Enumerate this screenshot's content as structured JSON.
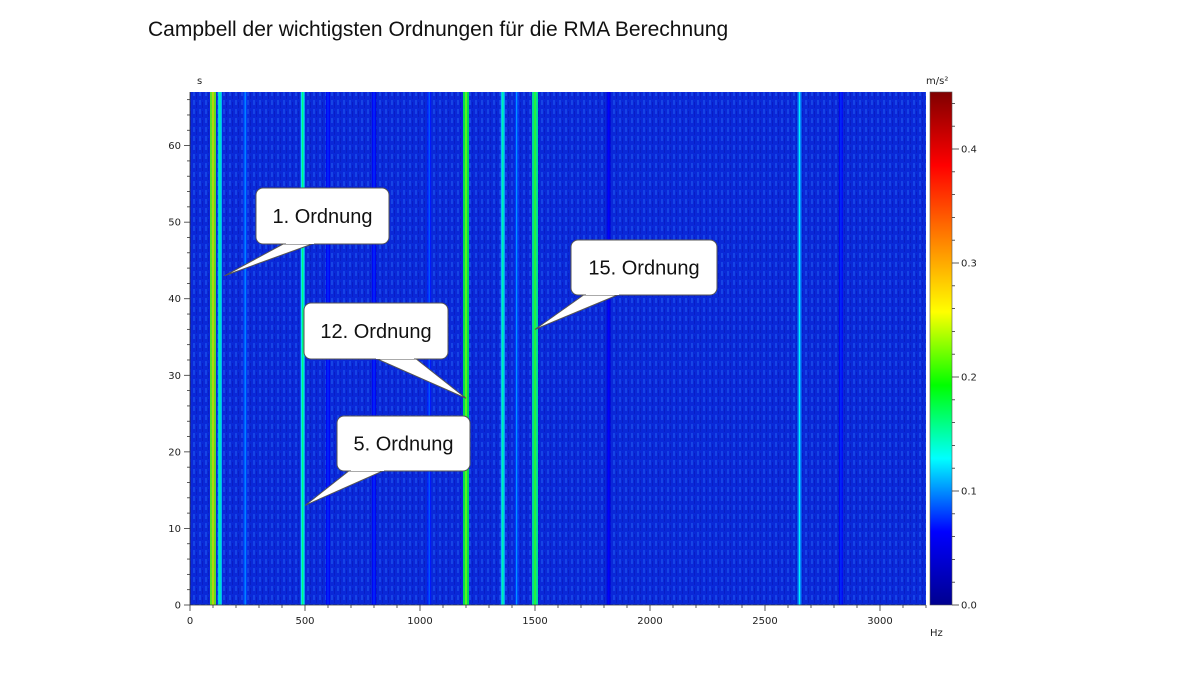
{
  "title": "Campbell der wichtigsten Ordnungen für die RMA Berechnung",
  "chart_data": {
    "type": "heatmap",
    "title": "Campbell der wichtigsten Ordnungen für die RMA Berechnung",
    "xlabel": "Hz",
    "ylabel": "s",
    "colorbar_label": "m/s²",
    "xlim": [
      0,
      3200
    ],
    "ylim": [
      0,
      67
    ],
    "clim": [
      0,
      0.45
    ],
    "x_ticks": [
      0,
      500,
      1000,
      1500,
      2000,
      2500,
      3000
    ],
    "y_ticks": [
      0,
      10,
      20,
      30,
      40,
      50,
      60
    ],
    "colorbar_ticks": [
      "0.0",
      "0.1",
      "0.2",
      "0.3",
      "0.4"
    ],
    "colormap": [
      "#00008f",
      "#0000ff",
      "#00ffff",
      "#00ff00",
      "#ffff00",
      "#ff8000",
      "#ff0000",
      "#800000"
    ],
    "bands": [
      {
        "hz": 100,
        "level": 0.22
      },
      {
        "hz": 130,
        "level": 0.12
      },
      {
        "hz": 240,
        "level": 0.08
      },
      {
        "hz": 490,
        "level": 0.13
      },
      {
        "hz": 600,
        "level": 0.06
      },
      {
        "hz": 800,
        "level": 0.06
      },
      {
        "hz": 1040,
        "level": 0.07
      },
      {
        "hz": 1200,
        "level": 0.18
      },
      {
        "hz": 1360,
        "level": 0.12
      },
      {
        "hz": 1420,
        "level": 0.08
      },
      {
        "hz": 1500,
        "level": 0.16
      },
      {
        "hz": 1820,
        "level": 0.05
      },
      {
        "hz": 2650,
        "level": 0.1
      },
      {
        "hz": 2830,
        "level": 0.06
      }
    ],
    "annotations": [
      {
        "text": "1. Ordnung",
        "x": 150,
        "y": 43
      },
      {
        "text": "15. Ordnung",
        "x": 1500,
        "y": 36
      },
      {
        "text": "12. Ordnung",
        "x": 1200,
        "y": 27
      },
      {
        "text": "5. Ordnung",
        "x": 500,
        "y": 13
      }
    ]
  }
}
